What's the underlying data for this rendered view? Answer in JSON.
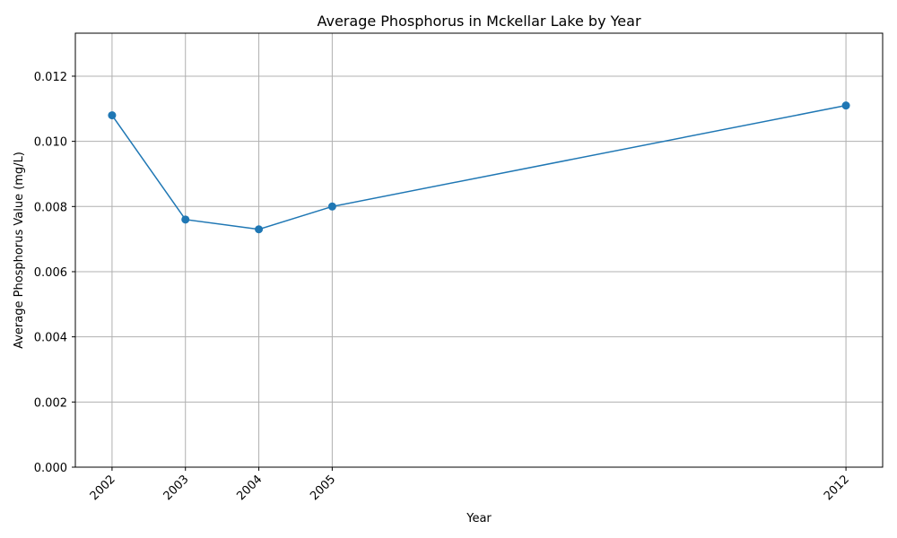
{
  "chart_data": {
    "type": "line",
    "title": "Average Phosphorus in Mckellar Lake by Year",
    "xlabel": "Year",
    "ylabel": "Average Phosphorus Value (mg/L)",
    "x": [
      2002,
      2003,
      2004,
      2005,
      2012
    ],
    "xtick_labels": [
      "2002",
      "2003",
      "2004",
      "2005",
      "2012"
    ],
    "xlim": [
      2001.5,
      2012.5
    ],
    "ylim": [
      0,
      0.01332
    ],
    "yticks": [
      0,
      0.002,
      0.004,
      0.006,
      0.008,
      0.01,
      0.012
    ],
    "ytick_labels": [
      "0.000",
      "0.002",
      "0.004",
      "0.006",
      "0.008",
      "0.010",
      "0.012"
    ],
    "series": [
      {
        "values": [
          0.0108,
          0.0076,
          0.0073,
          0.008,
          0.0111
        ],
        "color": "#1f77b4"
      }
    ],
    "grid": true,
    "marker": "circle"
  }
}
